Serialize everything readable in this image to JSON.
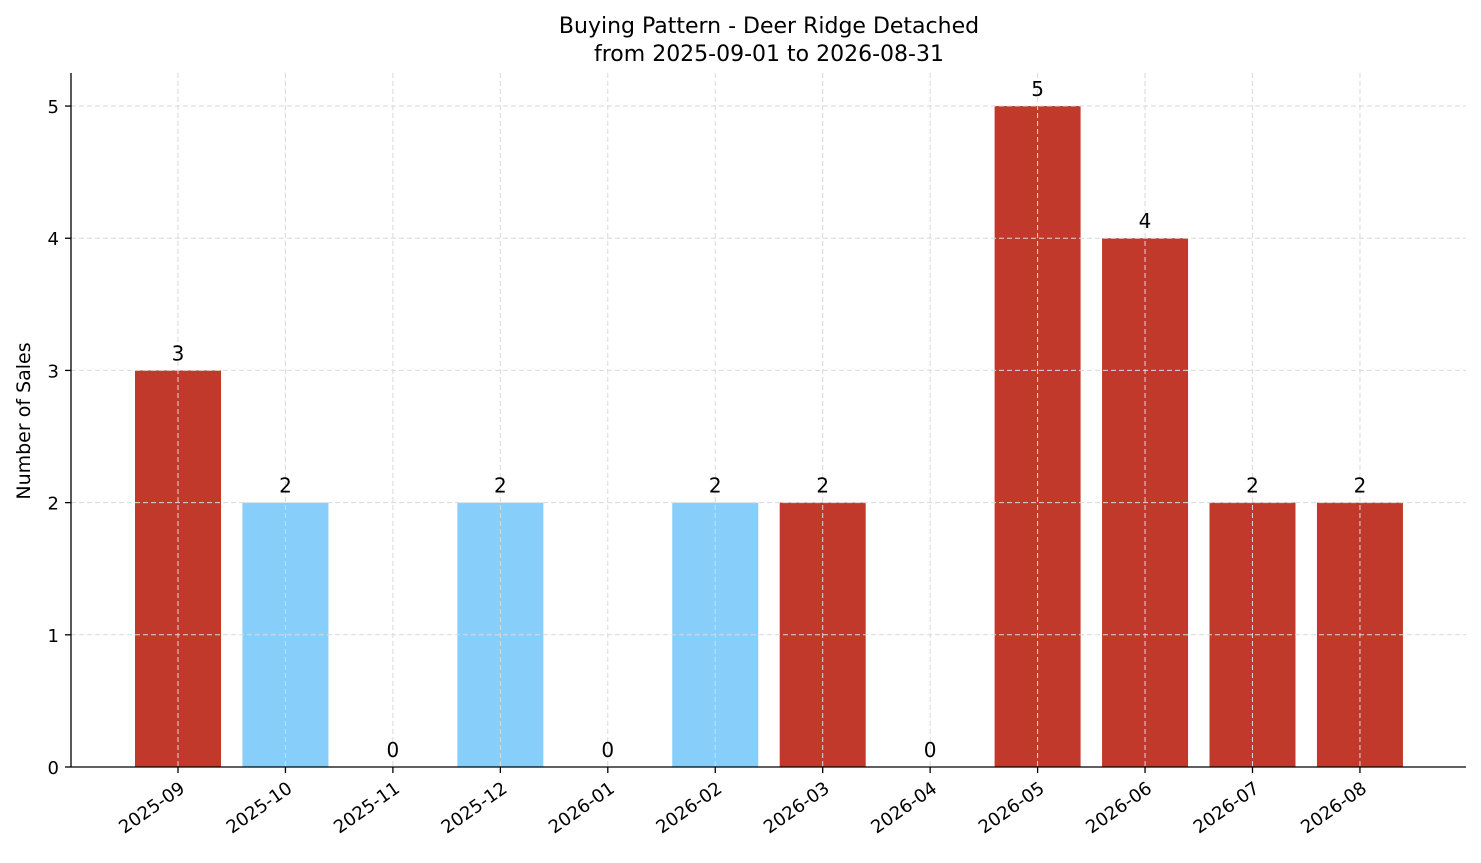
{
  "chart_data": {
    "type": "bar",
    "title": "Buying Pattern - Deer Ridge Detached",
    "subtitle": "from 2025-09-01 to 2026-08-31",
    "xlabel": "",
    "ylabel": "Number of Sales",
    "categories": [
      "2025-09",
      "2025-10",
      "2025-11",
      "2025-12",
      "2026-01",
      "2026-02",
      "2026-03",
      "2026-04",
      "2026-05",
      "2026-06",
      "2026-07",
      "2026-08"
    ],
    "values": [
      3,
      2,
      0,
      2,
      0,
      2,
      2,
      0,
      5,
      4,
      2,
      2
    ],
    "bar_colors": [
      "#c0392b",
      "#87cefa",
      "#87cefa",
      "#87cefa",
      "#87cefa",
      "#87cefa",
      "#c0392b",
      "#c0392b",
      "#c0392b",
      "#c0392b",
      "#c0392b",
      "#c0392b"
    ],
    "ylim": [
      0,
      5.25
    ],
    "yticks": [
      0,
      1,
      2,
      3,
      4,
      5
    ],
    "grid": true
  }
}
